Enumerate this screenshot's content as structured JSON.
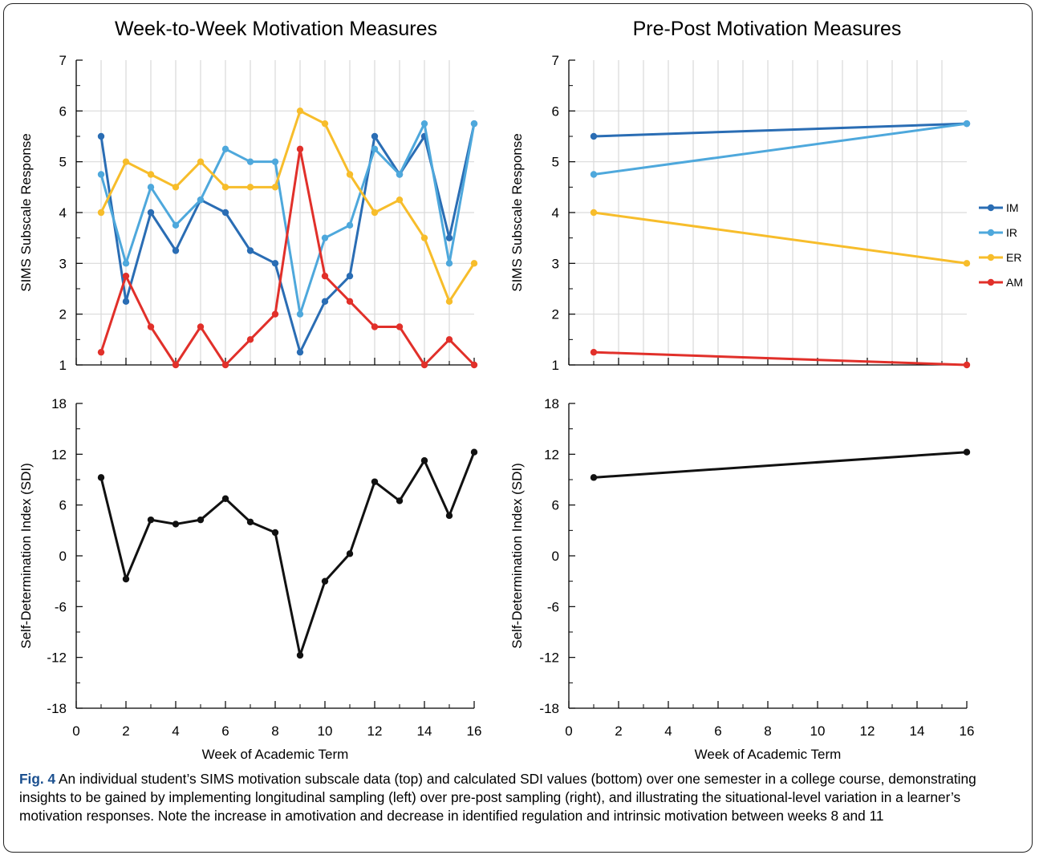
{
  "titles": {
    "left": "Week-to-Week Motivation Measures",
    "right": "Pre-Post Motivation Measures"
  },
  "caption": {
    "label": "Fig. 4",
    "text": " An individual student’s SIMS motivation subscale data (top) and calculated SDI values (bottom) over one semester in a college course, demonstrating insights to be gained by implementing longitudinal sampling (left) over pre-post sampling (right), and illustrating the situational-level variation in a learner’s motivation responses. Note the increase in amotivation and decrease in identified regulation and intrinsic motivation between weeks 8 and 11"
  },
  "colors": {
    "IM": "#2a6db4",
    "IR": "#4ea8dc",
    "ER": "#f7bd2b",
    "AM": "#e1302a",
    "SDI": "#111111",
    "grid": "#d9d9d9"
  },
  "chart_data": [
    {
      "id": "week-sims",
      "type": "line",
      "xlabel": "",
      "ylabel": "SIMS Subscale Response",
      "xlim": [
        0,
        16
      ],
      "ylim": [
        1,
        7
      ],
      "xticks": [
        0,
        2,
        4,
        6,
        8,
        10,
        12,
        14,
        16
      ],
      "yticks": [
        1,
        2,
        3,
        4,
        5,
        6,
        7
      ],
      "grid": true,
      "x": [
        1,
        2,
        3,
        4,
        5,
        6,
        7,
        8,
        9,
        10,
        11,
        12,
        13,
        14,
        15,
        16
      ],
      "series": [
        {
          "name": "IM",
          "values": [
            5.5,
            2.25,
            4.0,
            3.25,
            4.25,
            4.0,
            3.25,
            3.0,
            1.25,
            2.25,
            2.75,
            5.5,
            4.75,
            5.5,
            3.5,
            5.75
          ]
        },
        {
          "name": "IR",
          "values": [
            4.75,
            3.0,
            4.5,
            3.75,
            4.25,
            5.25,
            5.0,
            5.0,
            2.0,
            3.5,
            3.75,
            5.25,
            4.75,
            5.75,
            3.0,
            5.75
          ]
        },
        {
          "name": "ER",
          "values": [
            4.0,
            5.0,
            4.75,
            4.5,
            5.0,
            4.5,
            4.5,
            4.5,
            6.0,
            5.75,
            4.75,
            4.0,
            4.25,
            3.5,
            2.25,
            3.0
          ]
        },
        {
          "name": "AM",
          "values": [
            1.25,
            2.75,
            1.75,
            1.0,
            1.75,
            1.0,
            1.5,
            2.0,
            5.25,
            2.75,
            2.25,
            1.75,
            1.75,
            1.0,
            1.5,
            1.0
          ]
        }
      ]
    },
    {
      "id": "prepost-sims",
      "type": "line",
      "xlabel": "",
      "ylabel": "SIMS Subscale Response",
      "xlim": [
        0,
        16
      ],
      "ylim": [
        1,
        7
      ],
      "xticks": [
        0,
        2,
        4,
        6,
        8,
        10,
        12,
        14,
        16
      ],
      "yticks": [
        1,
        2,
        3,
        4,
        5,
        6,
        7
      ],
      "grid": true,
      "legend": "right",
      "x": [
        1,
        16
      ],
      "series": [
        {
          "name": "IM",
          "values": [
            5.5,
            5.75
          ]
        },
        {
          "name": "IR",
          "values": [
            4.75,
            5.75
          ]
        },
        {
          "name": "ER",
          "values": [
            4.0,
            3.0
          ]
        },
        {
          "name": "AM",
          "values": [
            1.25,
            1.0
          ]
        }
      ]
    },
    {
      "id": "week-sdi",
      "type": "line",
      "xlabel": "Week of Academic Term",
      "ylabel": "Self-Determination Index (SDI)",
      "xlim": [
        0,
        16
      ],
      "ylim": [
        -18,
        18
      ],
      "xticks": [
        0,
        2,
        4,
        6,
        8,
        10,
        12,
        14,
        16
      ],
      "yticks": [
        -18,
        -12,
        -6,
        0,
        6,
        12,
        18
      ],
      "grid": false,
      "x": [
        1,
        2,
        3,
        4,
        5,
        6,
        7,
        8,
        9,
        10,
        11,
        12,
        13,
        14,
        15,
        16
      ],
      "series": [
        {
          "name": "SDI",
          "values": [
            9.25,
            -2.75,
            4.25,
            3.75,
            4.25,
            6.75,
            4.0,
            2.75,
            -11.75,
            -3.0,
            0.25,
            8.75,
            6.5,
            11.25,
            4.75,
            12.25
          ]
        }
      ]
    },
    {
      "id": "prepost-sdi",
      "type": "line",
      "xlabel": "Week of Academic Term",
      "ylabel": "Self-Determination Index (SDI)",
      "xlim": [
        0,
        16
      ],
      "ylim": [
        -18,
        18
      ],
      "xticks": [
        0,
        2,
        4,
        6,
        8,
        10,
        12,
        14,
        16
      ],
      "yticks": [
        -18,
        -12,
        -6,
        0,
        6,
        12,
        18
      ],
      "grid": false,
      "x": [
        1,
        16
      ],
      "series": [
        {
          "name": "SDI",
          "values": [
            9.25,
            12.25
          ]
        }
      ]
    }
  ]
}
